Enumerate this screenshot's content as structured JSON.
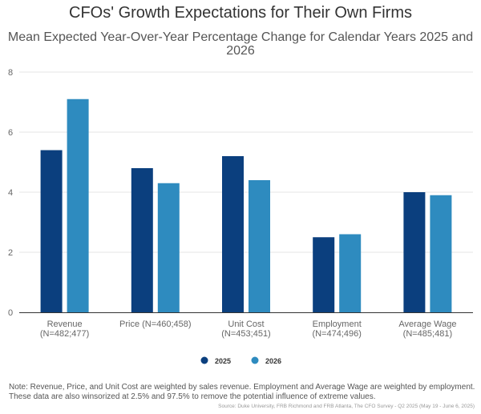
{
  "chart_data": {
    "type": "bar",
    "title": "CFOs' Growth Expectations for Their Own Firms",
    "subtitle": "Mean Expected Year-Over-Year Percentage Change for Calendar Years 2025 and 2026",
    "categories": [
      [
        "Revenue",
        "(N=482;477)"
      ],
      [
        "Price (N=460;458)"
      ],
      [
        "Unit Cost",
        "(N=453;451)"
      ],
      [
        "Employment",
        "(N=474;496)"
      ],
      [
        "Average Wage",
        "(N=485;481)"
      ]
    ],
    "series": [
      {
        "name": "2025",
        "color": "#0b3f7e",
        "values": [
          5.4,
          4.8,
          5.2,
          2.5,
          4.0
        ]
      },
      {
        "name": "2026",
        "color": "#2e8bbf",
        "values": [
          7.1,
          4.3,
          4.4,
          2.6,
          3.9
        ]
      }
    ],
    "xlabel": "",
    "ylabel": "",
    "ylim": [
      0,
      8
    ],
    "yticks": [
      0,
      2,
      4,
      6,
      8
    ],
    "grid": true,
    "legend_position": "bottom-center"
  },
  "note": {
    "line1": "Note: Revenue, Price, and Unit Cost are weighted by sales revenue. Employment and Average Wage are weighted by employment.",
    "line2": "These data are also winsorized at 2.5% and 97.5% to remove the potential influence of extreme values."
  },
  "source": "Source: Duke University, FRB Richmond and FRB Atlanta, The CFO Survey - Q2 2025 (May 19 - June 6, 2025)"
}
